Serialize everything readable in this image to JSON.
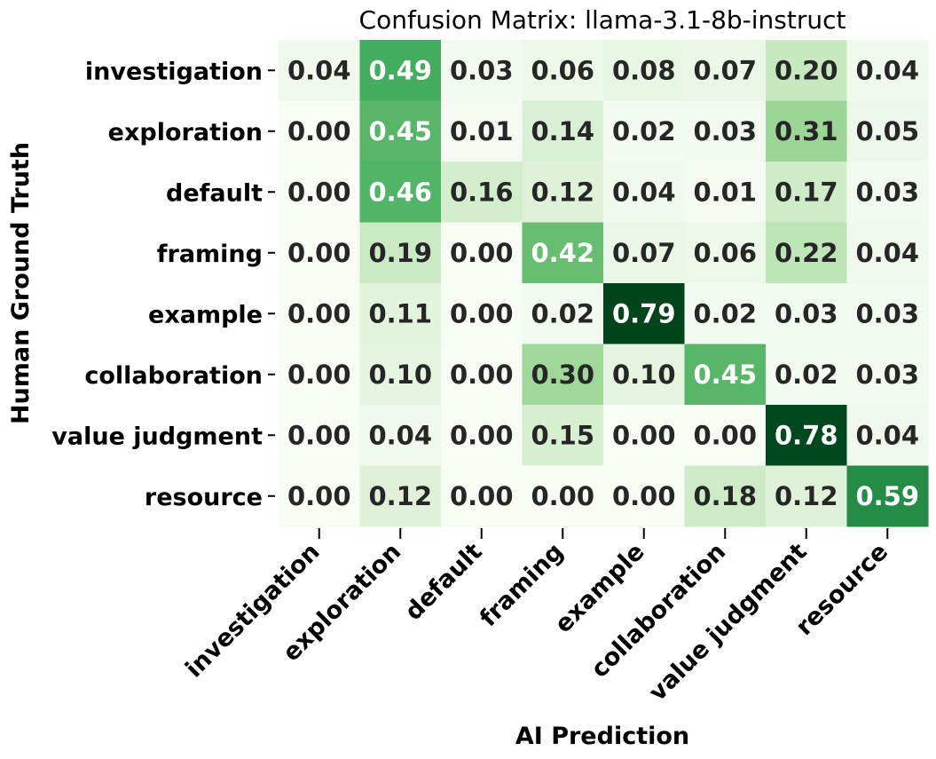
{
  "chart_data": {
    "type": "heatmap",
    "title": "Confusion Matrix: llama-3.1-8b-instruct",
    "xlabel": "AI Prediction",
    "ylabel": "Human Ground Truth",
    "x_categories": [
      "investigation",
      "exploration",
      "default",
      "framing",
      "example",
      "collaboration",
      "value judgment",
      "resource"
    ],
    "y_categories": [
      "investigation",
      "exploration",
      "default",
      "framing",
      "example",
      "collaboration",
      "value judgment",
      "resource"
    ],
    "values": [
      [
        0.04,
        0.49,
        0.03,
        0.06,
        0.08,
        0.07,
        0.2,
        0.04
      ],
      [
        0.0,
        0.45,
        0.01,
        0.14,
        0.02,
        0.03,
        0.31,
        0.05
      ],
      [
        0.0,
        0.46,
        0.16,
        0.12,
        0.04,
        0.01,
        0.17,
        0.03
      ],
      [
        0.0,
        0.19,
        0.0,
        0.42,
        0.07,
        0.06,
        0.22,
        0.04
      ],
      [
        0.0,
        0.11,
        0.0,
        0.02,
        0.79,
        0.02,
        0.03,
        0.03
      ],
      [
        0.0,
        0.1,
        0.0,
        0.3,
        0.1,
        0.45,
        0.02,
        0.03
      ],
      [
        0.0,
        0.04,
        0.0,
        0.15,
        0.0,
        0.0,
        0.78,
        0.04
      ],
      [
        0.0,
        0.12,
        0.0,
        0.0,
        0.0,
        0.18,
        0.12,
        0.59
      ]
    ],
    "value_range": [
      0,
      0.79
    ],
    "colormap": "Greens",
    "annotations": true,
    "grid": false,
    "legend": "none"
  }
}
